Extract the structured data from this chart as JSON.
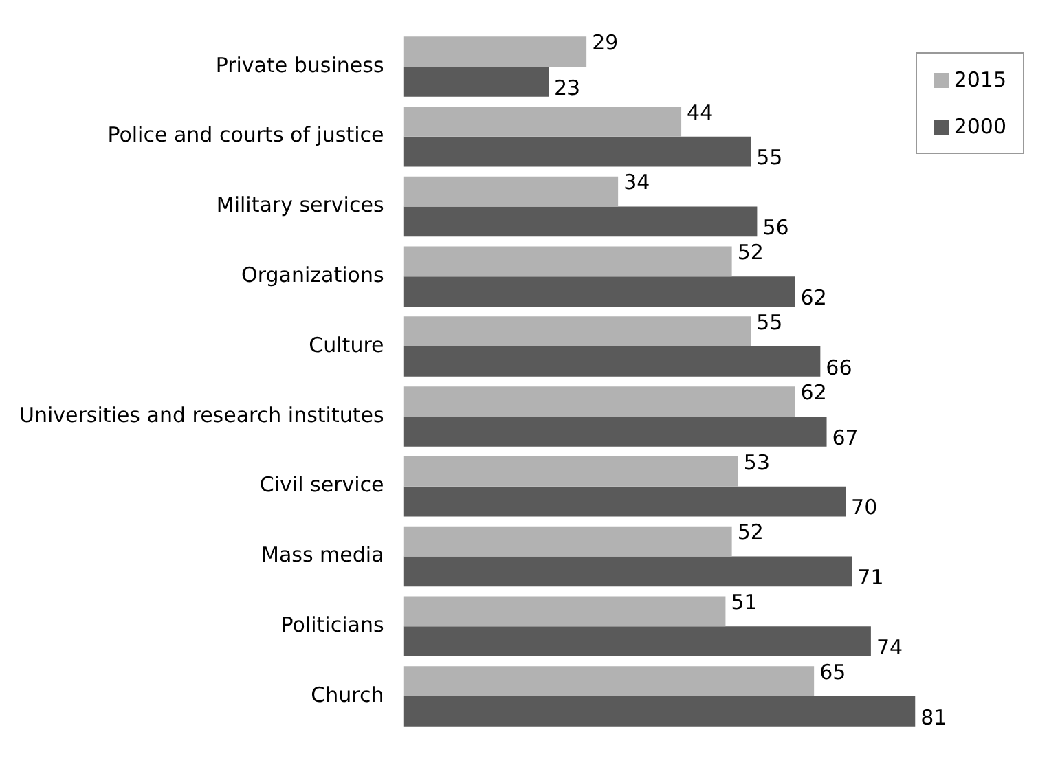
{
  "chart_data": {
    "type": "bar",
    "orientation": "horizontal",
    "categories": [
      "Private business",
      "Police and courts of justice",
      "Military services",
      "Organizations",
      "Culture",
      "Universities and research institutes",
      "Civil service",
      "Mass media",
      "Politicians",
      "Church"
    ],
    "series": [
      {
        "name": "2015",
        "color": "#b2b2b2",
        "values": [
          29,
          44,
          34,
          52,
          55,
          62,
          53,
          52,
          51,
          65
        ]
      },
      {
        "name": "2000",
        "color": "#5a5a5a",
        "values": [
          23,
          55,
          56,
          62,
          66,
          67,
          70,
          71,
          74,
          81
        ]
      }
    ],
    "data_labels": true,
    "legend": "top right"
  }
}
